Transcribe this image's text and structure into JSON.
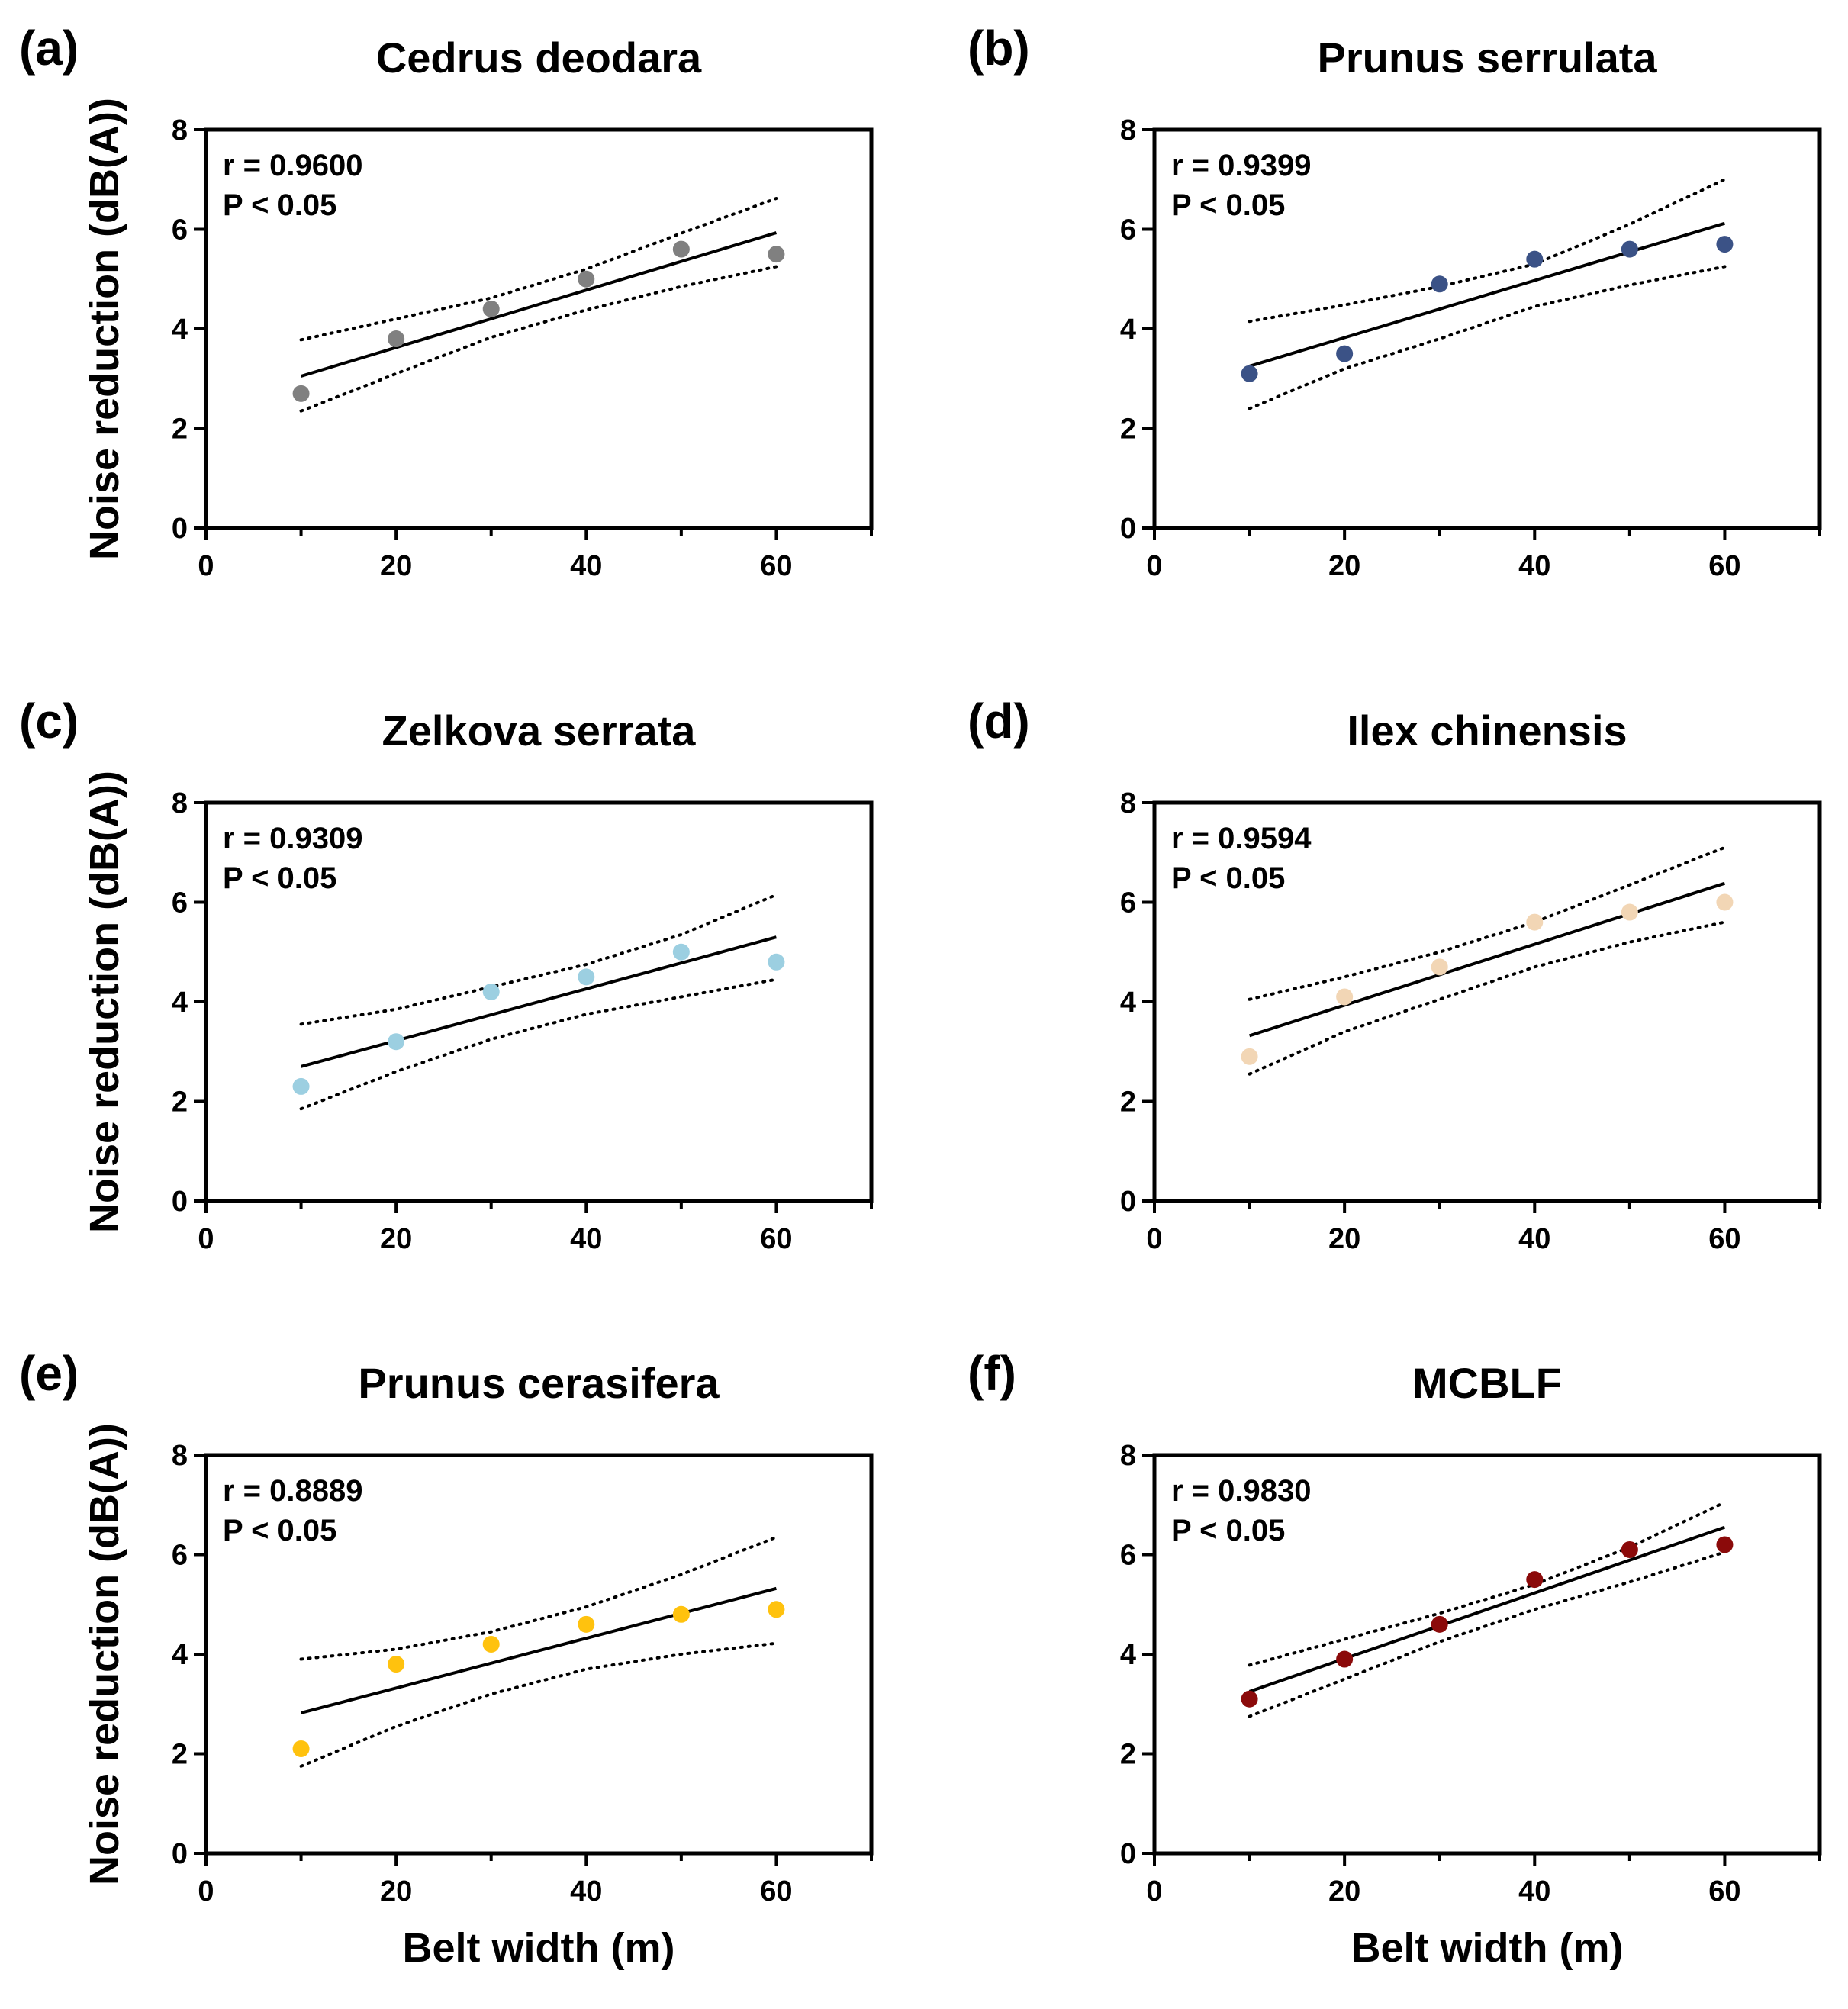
{
  "figure": {
    "shared_xlabel": "Belt width (m)",
    "shared_ylabel": "Noise reduction (dB(A))"
  },
  "chart_data": [
    {
      "panel": "(a)",
      "type": "scatter",
      "title": "Cedrus deodara",
      "x": [
        10,
        20,
        30,
        40,
        50,
        60
      ],
      "y": [
        2.7,
        3.8,
        4.4,
        5.0,
        5.6,
        5.5
      ],
      "r_text": "r = 0.9600",
      "p_text": "P < 0.05",
      "fit": {
        "x": [
          10,
          60
        ],
        "y": [
          3.05,
          5.93
        ]
      },
      "ci_upper": {
        "x": [
          10,
          20,
          30,
          40,
          50,
          60
        ],
        "y": [
          3.78,
          4.2,
          4.62,
          5.2,
          5.92,
          6.62
        ]
      },
      "ci_lower": {
        "x": [
          10,
          20,
          30,
          40,
          50,
          60
        ],
        "y": [
          2.35,
          3.1,
          3.83,
          4.38,
          4.85,
          5.25
        ]
      },
      "color": "#808080",
      "xlim": [
        0,
        70
      ],
      "ylim": [
        0,
        8
      ],
      "xticks": [
        "0",
        "20",
        "40",
        "60"
      ],
      "yticks": [
        "0",
        "2",
        "4",
        "6",
        "8"
      ],
      "xlabel": "",
      "ylabel": "Noise reduction (dB(A))"
    },
    {
      "panel": "(b)",
      "type": "scatter",
      "title": "Prunus serrulata",
      "x": [
        10,
        20,
        30,
        40,
        50,
        60
      ],
      "y": [
        3.1,
        3.5,
        4.9,
        5.4,
        5.6,
        5.7
      ],
      "r_text": "r = 0.9399",
      "p_text": "P < 0.05",
      "fit": {
        "x": [
          10,
          60
        ],
        "y": [
          3.25,
          6.12
        ]
      },
      "ci_upper": {
        "x": [
          10,
          20,
          30,
          40,
          50,
          60
        ],
        "y": [
          4.15,
          4.48,
          4.85,
          5.3,
          6.1,
          7.0
        ]
      },
      "ci_lower": {
        "x": [
          10,
          20,
          30,
          40,
          50,
          60
        ],
        "y": [
          2.4,
          3.2,
          3.8,
          4.45,
          4.88,
          5.25
        ]
      },
      "color": "#3b5286",
      "xlim": [
        0,
        70
      ],
      "ylim": [
        0,
        8
      ],
      "xticks": [
        "0",
        "20",
        "40",
        "60"
      ],
      "yticks": [
        "0",
        "2",
        "4",
        "6",
        "8"
      ],
      "xlabel": "",
      "ylabel": ""
    },
    {
      "panel": "(c)",
      "type": "scatter",
      "title": "Zelkova serrata",
      "x": [
        10,
        20,
        30,
        40,
        50,
        60
      ],
      "y": [
        2.3,
        3.2,
        4.2,
        4.5,
        5.0,
        4.8
      ],
      "r_text": "r = 0.9309",
      "p_text": "P < 0.05",
      "fit": {
        "x": [
          10,
          60
        ],
        "y": [
          2.7,
          5.3
        ]
      },
      "ci_upper": {
        "x": [
          10,
          20,
          30,
          40,
          50,
          60
        ],
        "y": [
          3.55,
          3.85,
          4.3,
          4.75,
          5.35,
          6.15
        ]
      },
      "ci_lower": {
        "x": [
          10,
          20,
          30,
          40,
          50,
          60
        ],
        "y": [
          1.85,
          2.6,
          3.25,
          3.75,
          4.1,
          4.45
        ]
      },
      "color": "#9ccfe1",
      "xlim": [
        0,
        70
      ],
      "ylim": [
        0,
        8
      ],
      "xticks": [
        "0",
        "20",
        "40",
        "60"
      ],
      "yticks": [
        "0",
        "2",
        "4",
        "6",
        "8"
      ],
      "xlabel": "",
      "ylabel": "Noise reduction (dB(A))"
    },
    {
      "panel": "(d)",
      "type": "scatter",
      "title": "Ilex chinensis",
      "x": [
        10,
        20,
        30,
        40,
        50,
        60
      ],
      "y": [
        2.9,
        4.1,
        4.7,
        5.6,
        5.8,
        6.0
      ],
      "r_text": "r = 0.9594",
      "p_text": "P < 0.05",
      "fit": {
        "x": [
          10,
          60
        ],
        "y": [
          3.32,
          6.38
        ]
      },
      "ci_upper": {
        "x": [
          10,
          20,
          30,
          40,
          50,
          60
        ],
        "y": [
          4.05,
          4.5,
          5.0,
          5.6,
          6.35,
          7.1
        ]
      },
      "ci_lower": {
        "x": [
          10,
          20,
          30,
          40,
          50,
          60
        ],
        "y": [
          2.55,
          3.4,
          4.05,
          4.7,
          5.2,
          5.6
        ]
      },
      "color": "#f2d6b5",
      "xlim": [
        0,
        70
      ],
      "ylim": [
        0,
        8
      ],
      "xticks": [
        "0",
        "20",
        "40",
        "60"
      ],
      "yticks": [
        "0",
        "2",
        "4",
        "6",
        "8"
      ],
      "xlabel": "",
      "ylabel": ""
    },
    {
      "panel": "(e)",
      "type": "scatter",
      "title": "Prunus cerasifera",
      "x": [
        10,
        20,
        30,
        40,
        50,
        60
      ],
      "y": [
        2.1,
        3.8,
        4.2,
        4.6,
        4.8,
        4.9
      ],
      "r_text": "r = 0.8889",
      "p_text": "P < 0.05",
      "fit": {
        "x": [
          10,
          60
        ],
        "y": [
          2.82,
          5.32
        ]
      },
      "ci_upper": {
        "x": [
          10,
          20,
          30,
          40,
          50,
          60
        ],
        "y": [
          3.9,
          4.1,
          4.45,
          4.95,
          5.6,
          6.35
        ]
      },
      "ci_lower": {
        "x": [
          10,
          20,
          30,
          40,
          50,
          60
        ],
        "y": [
          1.75,
          2.55,
          3.2,
          3.7,
          4.0,
          4.22
        ]
      },
      "color": "#ffc20e",
      "xlim": [
        0,
        70
      ],
      "ylim": [
        0,
        8
      ],
      "xticks": [
        "0",
        "20",
        "40",
        "60"
      ],
      "yticks": [
        "0",
        "2",
        "4",
        "6",
        "8"
      ],
      "xlabel": "Belt width (m)",
      "ylabel": "Noise reduction (dB(A))"
    },
    {
      "panel": "(f)",
      "type": "scatter",
      "title": "MCBLF",
      "x": [
        10,
        20,
        30,
        40,
        50,
        60
      ],
      "y": [
        3.1,
        3.9,
        4.6,
        5.5,
        6.1,
        6.2
      ],
      "r_text": "r = 0.9830",
      "p_text": "P < 0.05",
      "fit": {
        "x": [
          10,
          60
        ],
        "y": [
          3.25,
          6.55
        ]
      },
      "ci_upper": {
        "x": [
          10,
          20,
          30,
          40,
          50,
          60
        ],
        "y": [
          3.78,
          4.3,
          4.82,
          5.4,
          6.15,
          7.05
        ]
      },
      "ci_lower": {
        "x": [
          10,
          20,
          30,
          40,
          50,
          60
        ],
        "y": [
          2.75,
          3.5,
          4.25,
          4.9,
          5.45,
          6.05
        ]
      },
      "color": "#8b0a0a",
      "xlim": [
        0,
        70
      ],
      "ylim": [
        0,
        8
      ],
      "xticks": [
        "0",
        "20",
        "40",
        "60"
      ],
      "yticks": [
        "0",
        "2",
        "4",
        "6",
        "8"
      ],
      "xlabel": "Belt width (m)",
      "ylabel": ""
    }
  ]
}
